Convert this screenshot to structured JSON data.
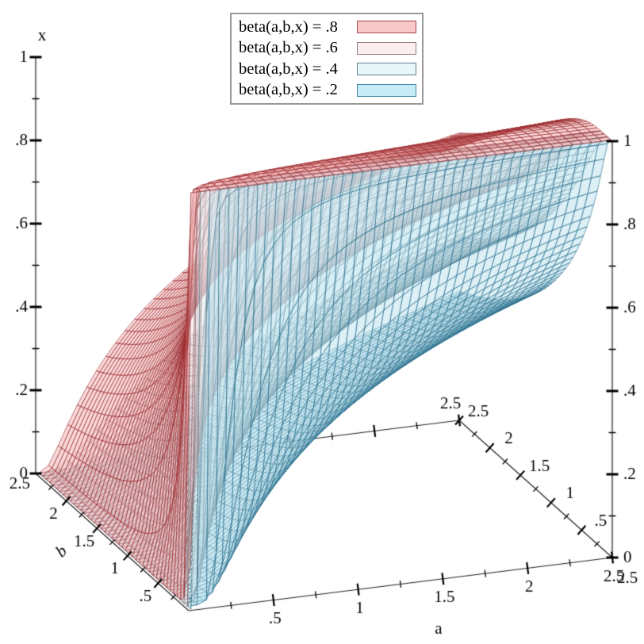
{
  "chart_data": {
    "type": "isosurface3d",
    "surface_equation": "level sets of beta(a,b,x), the regularized incomplete beta function I_x(a,b); each surface is x such that beta(a,b,x) = level",
    "levels": [
      0.8,
      0.6,
      0.4,
      0.2
    ],
    "grid_samples": 45,
    "domain_min": 0.02,
    "axes": {
      "a": {
        "title": "a",
        "min": 0,
        "max": 2.5,
        "tick_values": [
          0.5,
          1,
          1.5,
          2,
          2.5
        ],
        "tick_labels": [
          ".5",
          "1",
          "1.5",
          "2",
          "2.5"
        ],
        "minor_step": 0.25
      },
      "b": {
        "title": "b",
        "min": 0,
        "max": 2.5,
        "tick_values": [
          0.5,
          1,
          1.5,
          2,
          2.5
        ],
        "tick_labels": [
          ".5",
          "1",
          "1.5",
          "2",
          "2.5"
        ],
        "minor_step": 0.25
      },
      "x": {
        "title": "x",
        "min": 0,
        "max": 1,
        "tick_values": [
          0,
          0.2,
          0.4,
          0.6,
          0.8,
          1
        ],
        "tick_labels": [
          "0",
          ".2",
          ".4",
          ".6",
          ".8",
          "1"
        ],
        "minor_step": 0.1
      }
    },
    "corner_labels": {
      "b_end_at_left_corner": "2.5",
      "a_end_at_back_corner": "2.5",
      "b_start_at_back_corner": "2.5",
      "a_end_at_right_corner": "2.5"
    },
    "legend_entries": [
      {
        "label": "beta(a,b,x) = .8",
        "swatch_fill": "#f9c8cb",
        "swatch_border": "#a8444a"
      },
      {
        "label": "beta(a,b,x) = .6",
        "swatch_fill": "#fcedee",
        "swatch_border": "#94797d"
      },
      {
        "label": "beta(a,b,x) = .4",
        "swatch_fill": "#eaf7fa",
        "swatch_border": "#5d8290"
      },
      {
        "label": "beta(a,b,x) = .2",
        "swatch_fill": "#c7ecf6",
        "swatch_border": "#3f87a2"
      }
    ],
    "surfaces": [
      {
        "level": 0.8,
        "stroke": "rgba(153,42,45,0.9)",
        "fill": "rgba(243,170,174,0.45)"
      },
      {
        "level": 0.6,
        "stroke": "rgba(133,102,106,0.85)",
        "fill": "rgba(249,228,230,0.45)"
      },
      {
        "level": 0.4,
        "stroke": "rgba(77,112,128,0.85)",
        "fill": "rgba(226,243,248,0.45)"
      },
      {
        "level": 0.2,
        "stroke": "rgba(40,108,138,0.9)",
        "fill": "rgba(186,226,238,0.5)"
      }
    ],
    "projection": {
      "origin": [
        238,
        770
      ],
      "a_unit": [
        213.6,
        -26.8
      ],
      "b_unit": [
        -77.2,
        -69.2
      ],
      "x_unit": [
        0,
        -525
      ]
    },
    "style": {
      "axis_line_color": "#808080",
      "edge_line_color": "#222222",
      "tick_color": "#000000",
      "label_color": "#000000",
      "background": "#ffffff"
    }
  }
}
